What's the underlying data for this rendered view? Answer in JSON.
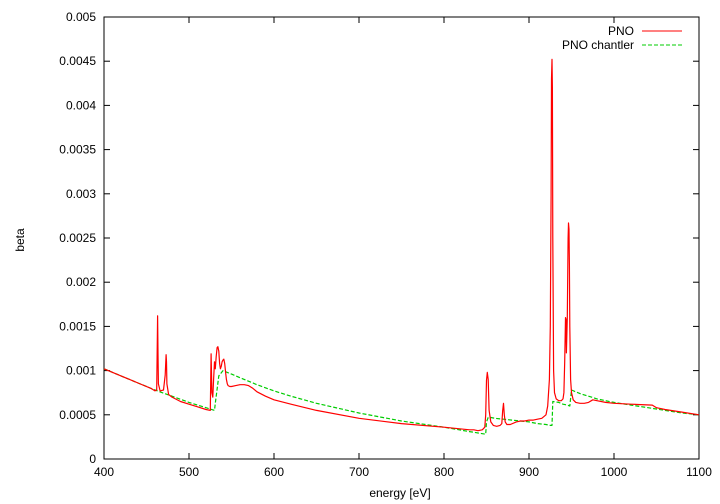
{
  "chart_data": {
    "type": "line",
    "xlabel": "energy [eV]",
    "ylabel": "beta",
    "xlim": [
      400,
      1100
    ],
    "ylim": [
      0,
      0.005
    ],
    "xticks": [
      400,
      500,
      600,
      700,
      800,
      900,
      1000,
      1100
    ],
    "yticks": [
      0,
      0.0005,
      0.001,
      0.0015,
      0.002,
      0.0025,
      0.003,
      0.0035,
      0.004,
      0.0045,
      0.005
    ],
    "xtick_labels": [
      "400",
      "500",
      "600",
      "700",
      "800",
      "900",
      "1000",
      "1100"
    ],
    "ytick_labels": [
      "0",
      "0.0005",
      "0.001",
      "0.0015",
      "0.002",
      "0.0025",
      "0.003",
      "0.0035",
      "0.004",
      "0.0045",
      "0.005"
    ],
    "legend_position": "top-right",
    "series": [
      {
        "name": "PNO",
        "color": "#ff0000",
        "dash": "solid",
        "x": [
          400,
          420,
          440,
          455,
          460,
          462,
          463,
          463.5,
          464,
          466,
          470,
          472,
          473,
          473.5,
          474,
          476,
          480,
          490,
          500,
          510,
          520,
          525,
          526,
          527,
          528,
          529,
          530,
          531,
          532,
          533,
          534,
          535,
          536,
          537,
          538,
          539,
          540,
          541,
          542,
          543,
          544,
          545,
          546,
          548,
          550,
          555,
          560,
          565,
          570,
          575,
          580,
          590,
          600,
          620,
          650,
          700,
          750,
          800,
          830,
          835,
          840,
          845,
          848,
          849,
          850,
          851,
          852,
          853,
          855,
          858,
          862,
          866,
          868,
          869,
          870,
          871,
          872,
          874,
          878,
          885,
          890,
          895,
          900,
          905,
          910,
          915,
          920,
          922,
          924,
          925,
          926,
          926.5,
          927,
          927.5,
          928,
          929,
          930,
          932,
          935,
          938,
          940,
          941,
          942,
          943,
          943.5,
          944,
          945,
          946,
          946.5,
          947,
          947.5,
          948,
          949,
          950,
          952,
          955,
          960,
          965,
          970,
          975,
          980,
          990,
          1000,
          1020,
          1045,
          1050,
          1060,
          1080,
          1100
        ],
        "y": [
          0.00102,
          0.00094,
          0.00086,
          0.0008,
          0.00077,
          0.00078,
          0.00162,
          0.0012,
          0.00085,
          0.00077,
          0.00078,
          0.00095,
          0.00118,
          0.0011,
          0.00085,
          0.00073,
          0.0007,
          0.00065,
          0.00062,
          0.00059,
          0.00056,
          0.00055,
          0.00119,
          0.00075,
          0.0007,
          0.0009,
          0.0011,
          0.00102,
          0.00116,
          0.00126,
          0.00127,
          0.00122,
          0.00108,
          0.00102,
          0.00105,
          0.0011,
          0.00112,
          0.00113,
          0.00108,
          0.00098,
          0.0009,
          0.00085,
          0.00083,
          0.00082,
          0.00082,
          0.00083,
          0.00084,
          0.00084,
          0.00083,
          0.0008,
          0.00076,
          0.00071,
          0.00067,
          0.00062,
          0.00055,
          0.00046,
          0.0004,
          0.00036,
          0.00033,
          0.00033,
          0.00032,
          0.00033,
          0.00036,
          0.0005,
          0.00089,
          0.00098,
          0.0009,
          0.00055,
          0.00042,
          0.00038,
          0.00037,
          0.00038,
          0.0004,
          0.00055,
          0.00063,
          0.0005,
          0.00042,
          0.00039,
          0.00039,
          0.00042,
          0.00043,
          0.00043,
          0.00044,
          0.00044,
          0.00045,
          0.00046,
          0.0005,
          0.0006,
          0.0009,
          0.0015,
          0.003,
          0.0043,
          0.00452,
          0.0042,
          0.0025,
          0.001,
          0.00075,
          0.00068,
          0.00066,
          0.00066,
          0.00068,
          0.00075,
          0.0011,
          0.0016,
          0.00158,
          0.0012,
          0.0016,
          0.0025,
          0.00267,
          0.0026,
          0.0022,
          0.0015,
          0.0009,
          0.00075,
          0.00067,
          0.00064,
          0.00063,
          0.00063,
          0.00064,
          0.00067,
          0.00066,
          0.00064,
          0.00063,
          0.00062,
          0.00061,
          0.00058,
          0.00056,
          0.00053,
          0.0005
        ]
      },
      {
        "name": "PNO chantler",
        "color": "#00cc00",
        "dash": "dashed",
        "x": [
          400,
          420,
          440,
          460,
          480,
          500,
          520,
          530,
          531,
          535,
          540,
          545,
          550,
          560,
          570,
          580,
          600,
          620,
          650,
          700,
          750,
          800,
          830,
          849,
          850,
          852,
          855,
          860,
          870,
          880,
          890,
          900,
          910,
          920,
          925,
          927,
          928,
          935,
          940,
          945,
          948,
          950,
          955,
          960,
          970,
          980,
          990,
          1000,
          1020,
          1040,
          1060,
          1080,
          1100
        ],
        "y": [
          0.00102,
          0.00094,
          0.00086,
          0.00078,
          0.00071,
          0.00064,
          0.00058,
          0.00055,
          0.00063,
          0.00094,
          0.001,
          0.00098,
          0.00096,
          0.00092,
          0.00088,
          0.00084,
          0.00077,
          0.00071,
          0.00063,
          0.00052,
          0.00043,
          0.00036,
          0.00031,
          0.00028,
          0.00042,
          0.00047,
          0.00047,
          0.00046,
          0.00045,
          0.00044,
          0.00043,
          0.00042,
          0.0004,
          0.00039,
          0.00038,
          0.00038,
          0.00065,
          0.00064,
          0.00062,
          0.00061,
          0.0006,
          0.00078,
          0.00076,
          0.00074,
          0.00071,
          0.00068,
          0.00066,
          0.00064,
          0.00061,
          0.00058,
          0.00055,
          0.00052,
          0.0005
        ]
      }
    ]
  }
}
